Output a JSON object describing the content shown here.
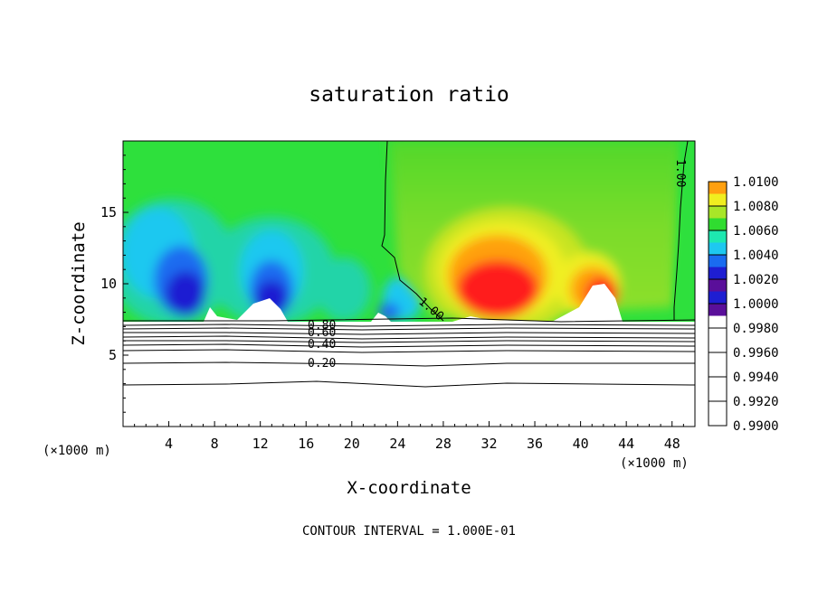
{
  "chart_data": {
    "type": "heatmap",
    "title": "saturation ratio",
    "xlabel": "X-coordinate",
    "ylabel": "Z-coordinate",
    "x_unit": "(×1000 m)",
    "footer": "CONTOUR INTERVAL = 1.000E-01",
    "xlim": [
      0,
      50
    ],
    "ylim": [
      0,
      20
    ],
    "x_ticks": [
      4,
      8,
      12,
      16,
      20,
      24,
      28,
      32,
      36,
      40,
      44,
      48
    ],
    "y_ticks": [
      5,
      10,
      15
    ],
    "colorbar": {
      "levels": [
        "0.9900",
        "0.9920",
        "0.9940",
        "0.9960",
        "0.9980",
        "1.0000",
        "1.0020",
        "1.0040",
        "1.0060",
        "1.0080",
        "1.0100"
      ],
      "colors": [
        "#5a0f9a",
        "#1e1ed2",
        "#1a6cf0",
        "#1ec8f0",
        "#1ee8b0",
        "#30dc30",
        "#a8e628",
        "#f0ee20",
        "#ffa010",
        "#ff1e1e",
        "#ff8a8a"
      ]
    },
    "contour_labels": [
      {
        "text": "0.80",
        "x": 17.6,
        "z": 7.1
      },
      {
        "text": "0.60",
        "x": 17.6,
        "z": 6.6
      },
      {
        "text": "0.40",
        "x": 17.6,
        "z": 6.0
      },
      {
        "text": "0.20",
        "x": 17.6,
        "z": 4.4
      },
      {
        "text": "1.00",
        "x": 26.2,
        "z": 8.3
      },
      {
        "text": "1.00",
        "x": 48.9,
        "z": 17.1
      }
    ],
    "contour_lines_z": [
      7.55,
      7.3,
      7.1,
      6.85,
      6.6,
      6.35,
      6.0,
      5.6,
      4.55,
      3.0
    ],
    "supersaturated_region": {
      "x_min": 26.5,
      "x_max": 49.5,
      "z_max": 20
    },
    "cloud_surface_z": 7.6
  }
}
